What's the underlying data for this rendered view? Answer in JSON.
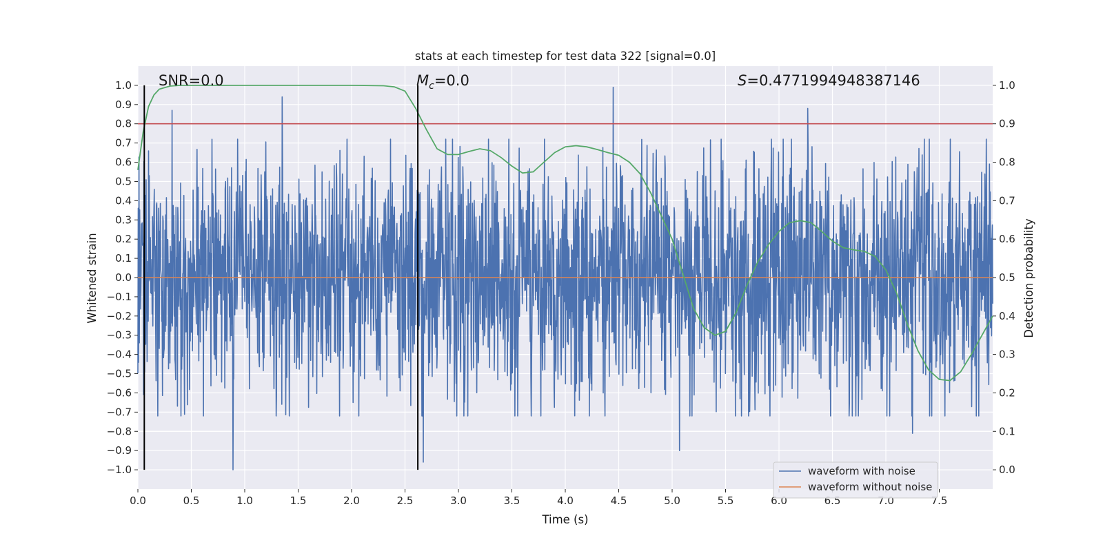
{
  "chart_data": {
    "type": "line",
    "title": "stats at each timestep for test data 322 [signal=0.0]",
    "xlabel": "Time (s)",
    "ylabel": "Whitened strain",
    "y2label": "Detection probability",
    "xlim": [
      0.0,
      8.0
    ],
    "ylim": [
      -1.1,
      1.1
    ],
    "y2lim": [
      -0.05,
      1.05
    ],
    "xticks": [
      "0.0",
      "0.5",
      "1.0",
      "1.5",
      "2.0",
      "2.5",
      "3.0",
      "3.5",
      "4.0",
      "4.5",
      "5.0",
      "5.5",
      "6.0",
      "6.5",
      "7.0",
      "7.5"
    ],
    "yticks": [
      "1.0",
      "0.9",
      "0.8",
      "0.7",
      "0.6",
      "0.5",
      "0.4",
      "0.3",
      "0.2",
      "0.1",
      "0.0",
      "−0.1",
      "−0.2",
      "−0.3",
      "−0.4",
      "−0.5",
      "−0.6",
      "−0.7",
      "−0.8",
      "−0.9",
      "−1.0"
    ],
    "y2ticks": [
      "1.0",
      "0.9",
      "0.8",
      "0.7",
      "0.6",
      "0.5",
      "0.4",
      "0.3",
      "0.2",
      "0.1",
      "0.0"
    ],
    "grid": true,
    "legend_position": "bottom-right",
    "annotations": {
      "snr": "SNR=0.0",
      "mc_symbol": "M",
      "mc_sub": "c",
      "mc_value": "=0.0",
      "s_symbol": "S",
      "s_value": "=0.4771994948387146"
    },
    "threshold": {
      "value": 0.9,
      "axis": "right",
      "color": "#c44e52"
    },
    "vlines": [
      {
        "x": 0.06,
        "ymin": -1.0,
        "ymax": 1.0
      },
      {
        "x": 2.62,
        "ymin": -1.0,
        "ymax": 1.0
      }
    ],
    "series": [
      {
        "name": "waveform with noise",
        "color": "#4c72b0",
        "description": "dense noisy whitened strain, amplitude mostly within ±0.6, peaks near +0.99 and -1.0",
        "envelope_peaks": [
          {
            "x": 0.32,
            "y": 0.87
          },
          {
            "x": 0.89,
            "y": -1.0
          },
          {
            "x": 1.35,
            "y": 0.94
          },
          {
            "x": 2.67,
            "y": -0.96
          },
          {
            "x": 4.45,
            "y": 0.99
          },
          {
            "x": 5.07,
            "y": -0.9
          },
          {
            "x": 6.27,
            "y": 0.88
          },
          {
            "x": 7.25,
            "y": -0.81
          }
        ]
      },
      {
        "name": "waveform without noise",
        "color": "#dd8452",
        "x": [
          0.0,
          8.0
        ],
        "y": [
          0.0,
          0.0
        ]
      },
      {
        "name": "Detection probability",
        "color": "#55a868",
        "axis": "right",
        "x": [
          0.0,
          0.05,
          0.1,
          0.15,
          0.2,
          0.3,
          0.4,
          0.5,
          0.8,
          1.5,
          2.0,
          2.3,
          2.4,
          2.5,
          2.6,
          2.7,
          2.8,
          2.9,
          3.0,
          3.1,
          3.2,
          3.3,
          3.4,
          3.5,
          3.6,
          3.7,
          3.8,
          3.9,
          4.0,
          4.1,
          4.2,
          4.3,
          4.4,
          4.5,
          4.6,
          4.7,
          4.8,
          4.9,
          5.0,
          5.1,
          5.2,
          5.3,
          5.4,
          5.5,
          5.6,
          5.7,
          5.8,
          5.9,
          6.0,
          6.1,
          6.2,
          6.3,
          6.4,
          6.5,
          6.6,
          6.7,
          6.8,
          6.9,
          7.0,
          7.1,
          7.2,
          7.3,
          7.4,
          7.5,
          7.6,
          7.7,
          7.8,
          7.9,
          8.0
        ],
        "y": [
          0.78,
          0.88,
          0.945,
          0.975,
          0.99,
          0.998,
          1.0,
          1.0,
          1.0,
          1.0,
          1.0,
          0.999,
          0.996,
          0.985,
          0.94,
          0.885,
          0.835,
          0.82,
          0.82,
          0.828,
          0.835,
          0.83,
          0.812,
          0.79,
          0.772,
          0.775,
          0.8,
          0.825,
          0.84,
          0.843,
          0.84,
          0.833,
          0.825,
          0.818,
          0.8,
          0.77,
          0.72,
          0.66,
          0.6,
          0.51,
          0.42,
          0.37,
          0.35,
          0.36,
          0.41,
          0.48,
          0.54,
          0.585,
          0.62,
          0.643,
          0.648,
          0.643,
          0.62,
          0.595,
          0.578,
          0.572,
          0.568,
          0.555,
          0.52,
          0.46,
          0.38,
          0.31,
          0.26,
          0.235,
          0.232,
          0.255,
          0.3,
          0.35,
          0.4
        ]
      }
    ]
  }
}
